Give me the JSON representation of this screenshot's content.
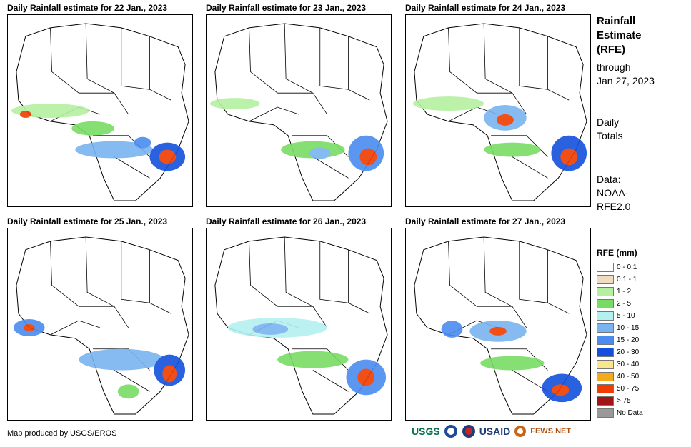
{
  "panels": [
    {
      "title": "Daily Rainfall estimate for 22 Jan., 2023"
    },
    {
      "title": "Daily Rainfall estimate for 23 Jan., 2023"
    },
    {
      "title": "Daily Rainfall estimate for 24 Jan., 2023"
    },
    {
      "title": "Daily Rainfall estimate for 25 Jan., 2023"
    },
    {
      "title": "Daily Rainfall estimate for 26 Jan., 2023"
    },
    {
      "title": "Daily Rainfall estimate for 27 Jan., 2023"
    }
  ],
  "sidebar": {
    "title_line1": "Rainfall",
    "title_line2": "Estimate",
    "title_line3": "(RFE)",
    "through": "through",
    "date": "Jan 27, 2023",
    "daily": "Daily",
    "totals": "Totals",
    "data_label": "Data:",
    "source1": "NOAA-",
    "source2": "RFE2.0"
  },
  "legend": {
    "title": "RFE (mm)",
    "items": [
      {
        "label": "0 - 0.1",
        "color": "#ffffff"
      },
      {
        "label": "0.1 - 1",
        "color": "#f0dcc0"
      },
      {
        "label": "1 - 2",
        "color": "#b4f0a0"
      },
      {
        "label": "2 - 5",
        "color": "#78dc64"
      },
      {
        "label": "5 - 10",
        "color": "#b4f0f0"
      },
      {
        "label": "10 - 15",
        "color": "#78b4f0"
      },
      {
        "label": "15 - 20",
        "color": "#4a8cf0"
      },
      {
        "label": "20 - 30",
        "color": "#1450dc"
      },
      {
        "label": "30 - 40",
        "color": "#fae68c"
      },
      {
        "label": "40 - 50",
        "color": "#f5aa1e"
      },
      {
        "label": "50 - 75",
        "color": "#f03c00"
      },
      {
        "label": "> 75",
        "color": "#a01414"
      },
      {
        "label": "No Data",
        "color": "#999999"
      }
    ]
  },
  "credit": "Map produced by USGS/EROS",
  "logos": {
    "usgs": "USGS",
    "usaid": "USAID",
    "fews": "FEWS NET"
  }
}
